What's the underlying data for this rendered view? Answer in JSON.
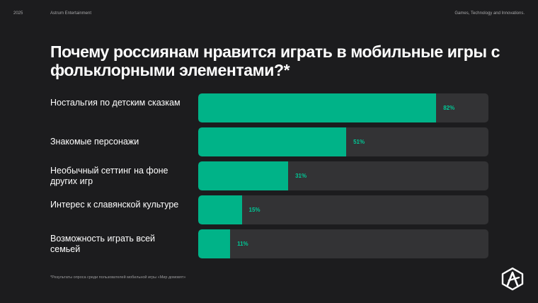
{
  "header": {
    "year": "2025",
    "company": "Astrum Entertainment",
    "tagline": "Games, Technology and Innovations."
  },
  "chart_data": {
    "type": "bar",
    "orientation": "horizontal",
    "title": "Почему россиянам нравится играть в мобильные игры с фольклорными элементами?*",
    "categories": [
      "Ностальгия по детским сказкам",
      "Знакомые персонажи",
      "Необычный сеттинг на фоне других игр",
      "Интерес к славянской культуре",
      "Возможность играть всей семьей"
    ],
    "values": [
      82,
      51,
      31,
      15,
      11
    ],
    "value_labels": [
      "82%",
      "51%",
      "31%",
      "15%",
      "11%"
    ],
    "xlim": [
      0,
      100
    ],
    "grid": false,
    "bar_color": "#00b388",
    "track_color": "#333335",
    "label_color": "#00c896"
  },
  "footnote": "*Результаты опроса среди пользователей мобильной игры «Мир домовят»",
  "logo_icon": "astrum-logo-icon"
}
